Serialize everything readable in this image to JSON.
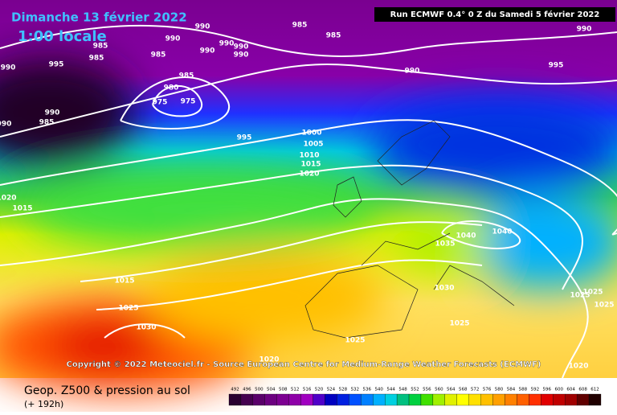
{
  "header": {
    "date": "Dimanche 13 février 2022",
    "time": "1:00 locale",
    "run": "Run ECMWF 0.4° 0 Z du Samedi 5 février 2022"
  },
  "copyright": "Copyright © 2022 Meteociel.fr - Source European Centre for Medium-Range Weather Forecasts (ECMWF)",
  "footer": {
    "title": "Geop. Z500 & pression au sol",
    "lead": "(+ 192h)"
  },
  "isobar_labels": [
    "990",
    "985",
    "990",
    "985",
    "990",
    "990",
    "990",
    "985",
    "985",
    "985",
    "990",
    "995",
    "985",
    "980",
    "975",
    "975",
    "990",
    "990",
    "985",
    "990",
    "990",
    "990",
    "995",
    "995",
    "1000",
    "1005",
    "1010",
    "1015",
    "1020",
    "1020",
    "1015",
    "1040",
    "1040",
    "1035",
    "1015",
    "1030",
    "1025",
    "1030",
    "1025",
    "1025",
    "1025",
    "1025",
    "1025",
    "1020",
    "1020"
  ],
  "legend": {
    "ticks": [
      492,
      496,
      500,
      504,
      508,
      512,
      516,
      520,
      524,
      528,
      532,
      536,
      540,
      544,
      548,
      552,
      556,
      560,
      564,
      568,
      572,
      576,
      580,
      584,
      588,
      592,
      596,
      600,
      604,
      608,
      612
    ],
    "colors": [
      "#2a0030",
      "#45004f",
      "#5a006a",
      "#6c0080",
      "#7d0092",
      "#8e00a8",
      "#a000c0",
      "#5000c8",
      "#0000c0",
      "#0020e0",
      "#0050ff",
      "#0080ff",
      "#00b0ff",
      "#00d0e0",
      "#00c080",
      "#00d040",
      "#40e000",
      "#a0f000",
      "#e0f000",
      "#ffff00",
      "#ffe000",
      "#ffc000",
      "#ffa000",
      "#ff8000",
      "#ff6000",
      "#ff3000",
      "#e00000",
      "#c00000",
      "#a00000",
      "#600000",
      "#200000"
    ]
  }
}
